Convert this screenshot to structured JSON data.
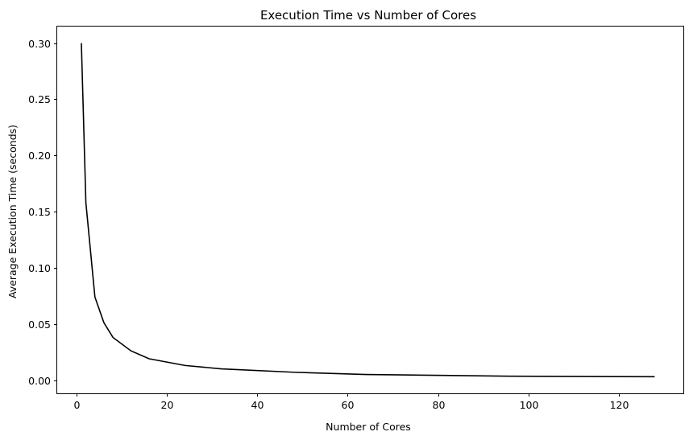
{
  "chart_data": {
    "type": "line",
    "title": "Execution Time vs Number of Cores",
    "xlabel": "Number of Cores",
    "ylabel": "Average Execution Time (seconds)",
    "xlim": [
      -4.35,
      134.35
    ],
    "ylim": [
      -0.0118,
      0.3148
    ],
    "xticks": [
      0,
      20,
      40,
      60,
      80,
      100,
      120
    ],
    "xtick_labels": [
      "0",
      "20",
      "40",
      "60",
      "80",
      "100",
      "120"
    ],
    "yticks": [
      0.0,
      0.05,
      0.1,
      0.15,
      0.2,
      0.25,
      0.3
    ],
    "ytick_labels": [
      "0.00",
      "0.05",
      "0.10",
      "0.15",
      "0.20",
      "0.25",
      "0.30"
    ],
    "grid": false,
    "line_color": "#000000",
    "series": [
      {
        "x": [
          1,
          2,
          4,
          6,
          8,
          12,
          16,
          24,
          32,
          48,
          64,
          96,
          128
        ],
        "values": [
          0.3,
          0.158,
          0.074,
          0.051,
          0.038,
          0.026,
          0.019,
          0.013,
          0.01,
          0.007,
          0.005,
          0.0035,
          0.003
        ]
      }
    ]
  }
}
